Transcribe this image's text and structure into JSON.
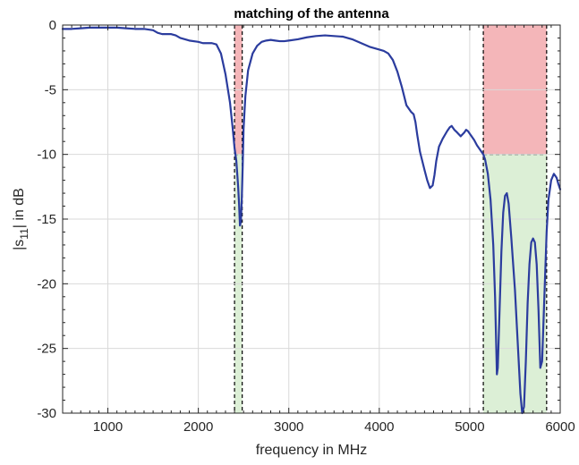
{
  "chart_data": {
    "type": "line",
    "title": "matching of the antenna",
    "xlabel": "frequency in MHz",
    "ylabel_main": "|s",
    "ylabel_sub": "11",
    "ylabel_rest": "| in dB",
    "xlim": [
      500,
      6000
    ],
    "ylim": [
      -30,
      0
    ],
    "xticks": [
      1000,
      2000,
      3000,
      4000,
      5000,
      6000
    ],
    "xtick_labels": [
      "1000",
      "2000",
      "3000",
      "4000",
      "5000",
      "6000"
    ],
    "yticks": [
      0,
      -5,
      -10,
      -15,
      -20,
      -25,
      -30
    ],
    "ytick_labels": [
      "0",
      "-5",
      "-10",
      "-15",
      "-20",
      "-25",
      "-30"
    ],
    "grid": true,
    "threshold_db": -10,
    "bands": [
      {
        "x_start": 2400,
        "x_end": 2485
      },
      {
        "x_start": 5150,
        "x_end": 5850
      }
    ],
    "band_colors": {
      "above": "#f4b6b9",
      "below": "#dcefd6"
    },
    "series": [
      {
        "color": "#2b3c9e",
        "x": [
          500,
          600,
          700,
          800,
          900,
          1000,
          1100,
          1200,
          1300,
          1400,
          1500,
          1550,
          1600,
          1700,
          1750,
          1800,
          1900,
          2000,
          2050,
          2100,
          2150,
          2200,
          2250,
          2300,
          2350,
          2380,
          2400,
          2420,
          2440,
          2450,
          2460,
          2470,
          2480,
          2490,
          2500,
          2520,
          2550,
          2600,
          2650,
          2700,
          2750,
          2800,
          2850,
          2900,
          2950,
          3000,
          3100,
          3200,
          3300,
          3400,
          3500,
          3600,
          3700,
          3800,
          3900,
          4000,
          4050,
          4100,
          4150,
          4200,
          4250,
          4300,
          4350,
          4380,
          4400,
          4420,
          4450,
          4500,
          4530,
          4560,
          4590,
          4610,
          4630,
          4660,
          4700,
          4750,
          4780,
          4800,
          4830,
          4860,
          4900,
          4940,
          4960,
          4980,
          5000,
          5020,
          5050,
          5080,
          5100,
          5130,
          5150,
          5170,
          5200,
          5230,
          5260,
          5280,
          5290,
          5300,
          5310,
          5330,
          5350,
          5370,
          5390,
          5410,
          5430,
          5460,
          5500,
          5530,
          5560,
          5580,
          5600,
          5620,
          5640,
          5660,
          5680,
          5700,
          5720,
          5740,
          5760,
          5780,
          5800,
          5830,
          5850,
          5870,
          5900,
          5930,
          5960,
          5980,
          6000
        ],
        "y": [
          -0.3,
          -0.3,
          -0.25,
          -0.2,
          -0.2,
          -0.2,
          -0.2,
          -0.25,
          -0.3,
          -0.3,
          -0.4,
          -0.6,
          -0.7,
          -0.7,
          -0.8,
          -1.0,
          -1.2,
          -1.3,
          -1.4,
          -1.4,
          -1.4,
          -1.5,
          -2.2,
          -3.8,
          -6.0,
          -8.0,
          -9.5,
          -10.5,
          -12.5,
          -13.8,
          -15.5,
          -15.2,
          -13.5,
          -11.0,
          -8.0,
          -5.5,
          -3.5,
          -2.2,
          -1.6,
          -1.3,
          -1.2,
          -1.15,
          -1.2,
          -1.25,
          -1.25,
          -1.2,
          -1.1,
          -0.95,
          -0.85,
          -0.8,
          -0.85,
          -0.9,
          -1.1,
          -1.4,
          -1.7,
          -1.9,
          -2.0,
          -2.2,
          -2.7,
          -3.6,
          -4.8,
          -6.2,
          -6.7,
          -6.9,
          -7.5,
          -8.5,
          -9.8,
          -11.2,
          -12.0,
          -12.6,
          -12.4,
          -11.6,
          -10.5,
          -9.4,
          -8.8,
          -8.2,
          -7.9,
          -7.8,
          -8.1,
          -8.3,
          -8.6,
          -8.3,
          -8.1,
          -8.2,
          -8.4,
          -8.6,
          -8.9,
          -9.3,
          -9.5,
          -9.8,
          -10.0,
          -10.4,
          -11.5,
          -13.5,
          -17.0,
          -21.0,
          -24.0,
          -27.0,
          -26.5,
          -22.0,
          -17.5,
          -14.5,
          -13.2,
          -13.0,
          -13.8,
          -16.5,
          -20.5,
          -24.5,
          -28.5,
          -30.0,
          -29.5,
          -26.0,
          -21.5,
          -18.5,
          -16.8,
          -16.5,
          -16.8,
          -18.5,
          -22.0,
          -26.5,
          -26.0,
          -20.0,
          -16.0,
          -13.5,
          -12.0,
          -11.5,
          -11.8,
          -12.3,
          -12.7
        ]
      }
    ]
  }
}
